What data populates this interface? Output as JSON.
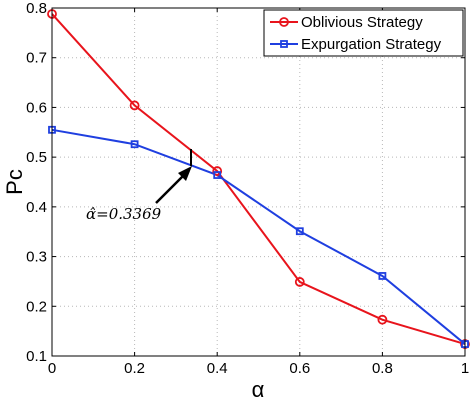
{
  "chart_data": {
    "type": "line",
    "x": [
      0,
      0.2,
      0.4,
      0.6,
      0.8,
      1
    ],
    "xlabel": "α",
    "ylabel": "Pc",
    "xlim": [
      0,
      1
    ],
    "ylim": [
      0.1,
      0.8
    ],
    "xticks": [
      "0",
      "0.2",
      "0.4",
      "0.6",
      "0.8",
      "1"
    ],
    "yticks": [
      "0.1",
      "0.2",
      "0.3",
      "0.4",
      "0.5",
      "0.6",
      "0.7",
      "0.8"
    ],
    "grid": true,
    "legend_position": "top-right",
    "series": [
      {
        "name": "Oblivious Strategy",
        "color": "#e8141c",
        "marker": "circle",
        "values": [
          0.788,
          0.604,
          0.472,
          0.249,
          0.173,
          0.124
        ]
      },
      {
        "name": "Expurgation Strategy",
        "color": "#1f3fe0",
        "marker": "square",
        "values": [
          0.555,
          0.526,
          0.464,
          0.351,
          0.261,
          0.124
        ]
      }
    ],
    "annotation": {
      "text": "α̂=0.3369",
      "x": 0.3369
    }
  }
}
